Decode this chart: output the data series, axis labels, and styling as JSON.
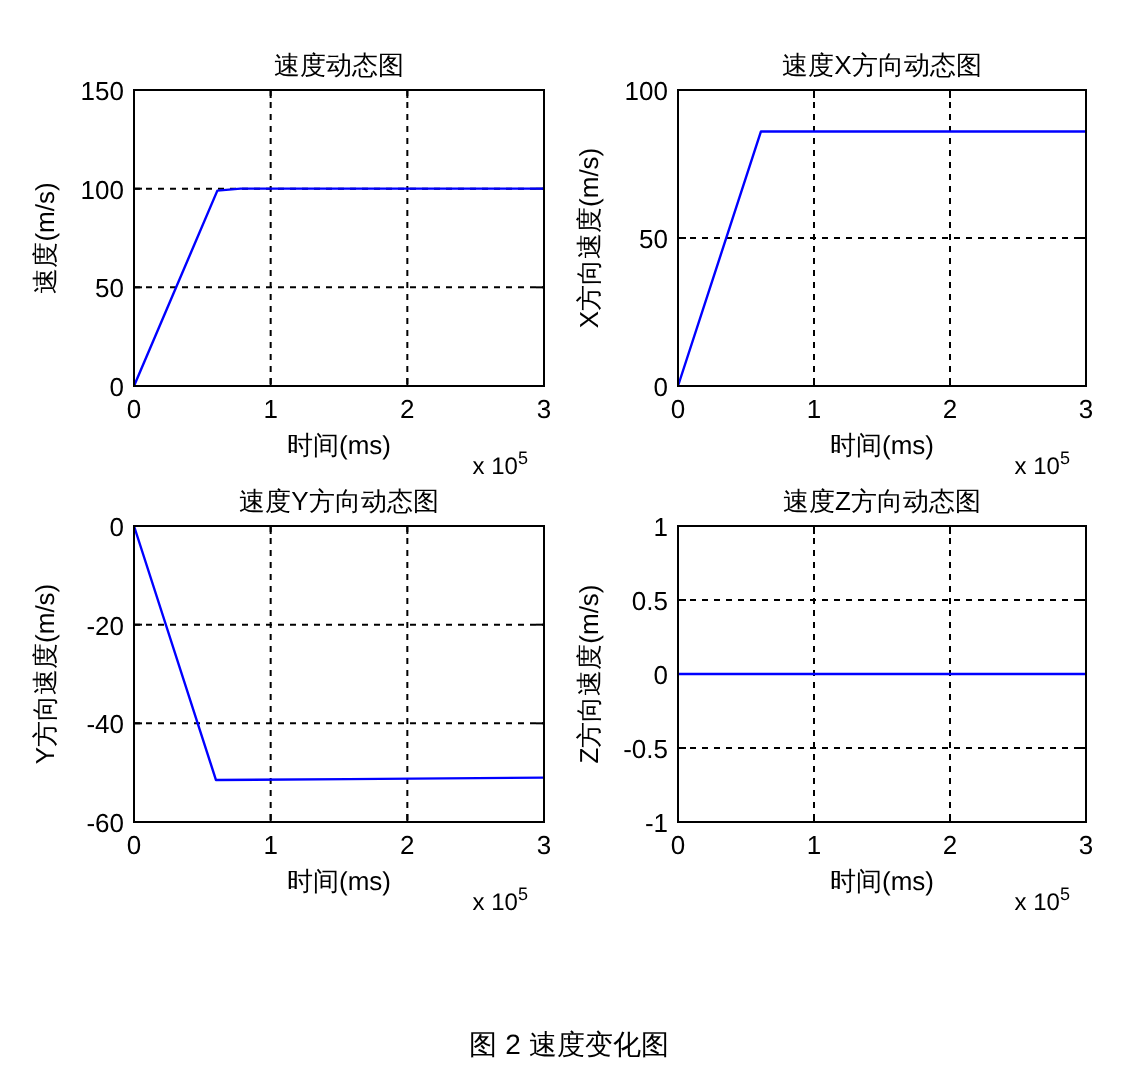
{
  "chart_data": [
    {
      "type": "line",
      "title": "速度动态图",
      "xlabel": "时间(ms)",
      "ylabel": "速度(m/s)",
      "xlim": [
        0,
        3
      ],
      "ylim": [
        0,
        150
      ],
      "xticks": [
        0,
        1,
        2,
        3
      ],
      "yticks": [
        0,
        50,
        100,
        150
      ],
      "grid": true,
      "annotations": [
        "x 10$^{5}$"
      ],
      "series": [
        {
          "color": "#0000ff",
          "x": [
            0,
            0.61,
            0.78,
            3
          ],
          "values": [
            0,
            99,
            100,
            100
          ]
        }
      ]
    },
    {
      "type": "line",
      "title": "速度X方向动态图",
      "xlabel": "时间(ms)",
      "ylabel": "X方向速度(m/s)",
      "xlim": [
        0,
        3
      ],
      "ylim": [
        0,
        100
      ],
      "xticks": [
        0,
        1,
        2,
        3
      ],
      "yticks": [
        0,
        50,
        100
      ],
      "grid": true,
      "annotations": [
        "x 10$^{5}$"
      ],
      "series": [
        {
          "color": "#0000ff",
          "x": [
            0,
            0.61,
            3
          ],
          "values": [
            0,
            86,
            86
          ]
        }
      ]
    },
    {
      "type": "line",
      "title": "速度Y方向动态图",
      "xlabel": "时间(ms)",
      "ylabel": "Y方向速度(m/s)",
      "xlim": [
        0,
        3
      ],
      "ylim": [
        -60,
        0
      ],
      "xticks": [
        0,
        1,
        2,
        3
      ],
      "yticks": [
        -60,
        -40,
        -20,
        0
      ],
      "grid": true,
      "annotations": [
        "x 10$^{5}$"
      ],
      "series": [
        {
          "color": "#0000ff",
          "x": [
            0,
            0.6,
            1.57,
            3
          ],
          "values": [
            0,
            -51.5,
            -51.3,
            -51
          ]
        }
      ]
    },
    {
      "type": "line",
      "title": "速度Z方向动态图",
      "xlabel": "时间(ms)",
      "ylabel": "Z方向速度(m/s)",
      "xlim": [
        0,
        3
      ],
      "ylim": [
        -1,
        1
      ],
      "xticks": [
        0,
        1,
        2,
        3
      ],
      "yticks": [
        -1,
        -0.5,
        0,
        0.5,
        1
      ],
      "grid": true,
      "annotations": [
        "x 10$^{5}$",
        "图 2  速度变化图"
      ],
      "series": [
        {
          "color": "#0000ff",
          "x": [
            0,
            3
          ],
          "values": [
            0,
            0
          ]
        }
      ]
    }
  ]
}
